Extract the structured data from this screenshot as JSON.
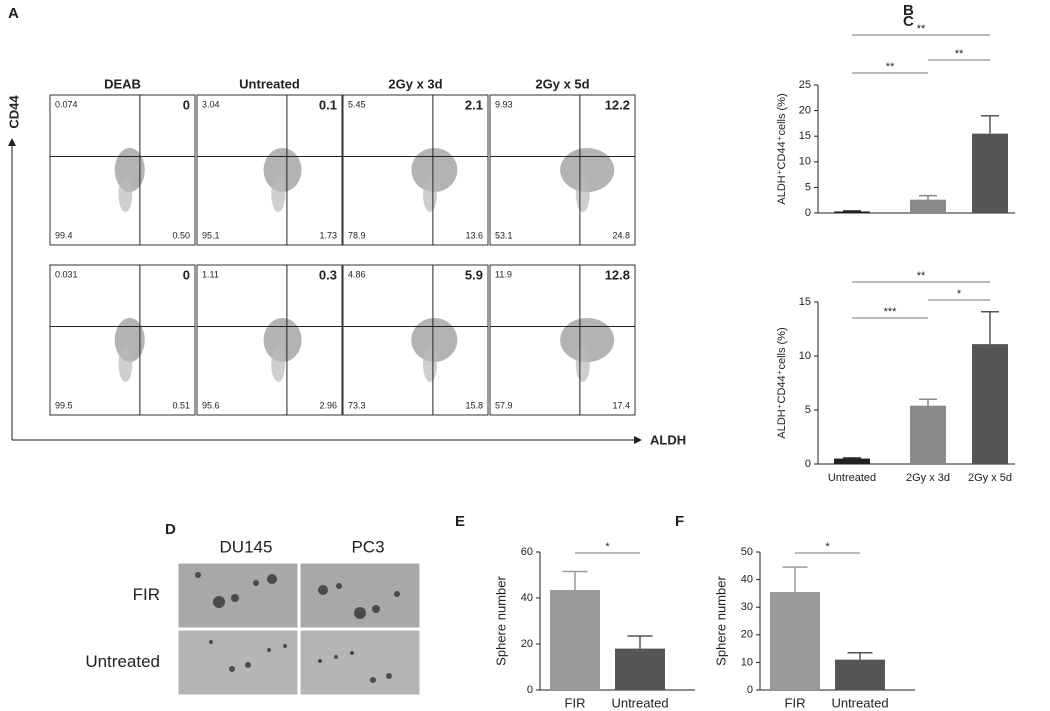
{
  "flow": {
    "panel": "A",
    "x_label": "ALDH",
    "y_label": "CD44",
    "columns": [
      "DEAB",
      "Untreated",
      "2Gy x 3d",
      "2Gy x 5d"
    ],
    "rows": [
      [
        {
          "ul": "0.074",
          "ur": "0",
          "ll": "99.4",
          "lr": "0.50"
        },
        {
          "ul": "3.04",
          "ur": "0.1",
          "ll": "95.1",
          "lr": "1.73"
        },
        {
          "ul": "5.45",
          "ur": "2.1",
          "ll": "78.9",
          "lr": "13.6"
        },
        {
          "ul": "9.93",
          "ur": "12.2",
          "ll": "53.1",
          "lr": "24.8"
        }
      ],
      [
        {
          "ul": "0.031",
          "ur": "0",
          "ll": "99.5",
          "lr": "0.51"
        },
        {
          "ul": "1.11",
          "ur": "0.3",
          "ll": "95.6",
          "lr": "2.96"
        },
        {
          "ul": "4.86",
          "ur": "5.9",
          "ll": "73.3",
          "lr": "15.8"
        },
        {
          "ul": "11.9",
          "ur": "12.8",
          "ll": "57.9",
          "lr": "17.4"
        }
      ]
    ]
  },
  "spheres": {
    "panel": "D",
    "columns": [
      "DU145",
      "PC3"
    ],
    "rows": [
      "FIR",
      "Untreated"
    ]
  },
  "chart_data": [
    {
      "type": "bar",
      "panel": "B",
      "y_label": "ALDH⁺CD44⁺cells (%)",
      "categories": [
        null,
        null,
        null
      ],
      "values": [
        0.3,
        2.6,
        15.5
      ],
      "errors": [
        0.1,
        0.8,
        3.5
      ],
      "colors": [
        "#222222",
        "#8a8a8a",
        "#555555"
      ],
      "ylim": [
        0,
        25
      ],
      "yticks": [
        0,
        5,
        10,
        15,
        20,
        25
      ],
      "annotations": [
        {
          "text": "**",
          "from": 0,
          "to": 1
        },
        {
          "text": "**",
          "from": 1,
          "to": 2
        },
        {
          "text": "**",
          "from": 0,
          "to": 2
        }
      ]
    },
    {
      "type": "bar",
      "panel": "C",
      "y_label": "ALDH⁺CD44⁺cells (%)",
      "categories": [
        "Untreated",
        "2Gy x 3d",
        "2Gy x 5d"
      ],
      "values": [
        0.5,
        5.4,
        11.1
      ],
      "errors": [
        0.05,
        0.6,
        3
      ],
      "colors": [
        "#222222",
        "#8a8a8a",
        "#555555"
      ],
      "ylim": [
        0,
        15
      ],
      "yticks": [
        0,
        5,
        10,
        15
      ],
      "annotations": [
        {
          "text": "***",
          "from": 0,
          "to": 1
        },
        {
          "text": "*",
          "from": 1,
          "to": 2
        },
        {
          "text": "**",
          "from": 0,
          "to": 2
        }
      ]
    },
    {
      "type": "bar",
      "panel": "E",
      "y_label": "Sphere number",
      "categories": [
        "FIR",
        "Untreated"
      ],
      "values": [
        43.5,
        18
      ],
      "errors": [
        8,
        5.5
      ],
      "colors": [
        "#9a9a9a",
        "#555555"
      ],
      "ylim": [
        0,
        60
      ],
      "yticks": [
        0,
        20,
        40,
        60
      ],
      "annotations": [
        {
          "text": "*",
          "from": 0,
          "to": 1
        }
      ]
    },
    {
      "type": "bar",
      "panel": "F",
      "y_label": "Sphere number",
      "categories": [
        "FIR",
        "Untreated"
      ],
      "values": [
        35.5,
        11
      ],
      "errors": [
        9,
        2.5
      ],
      "colors": [
        "#9a9a9a",
        "#555555"
      ],
      "ylim": [
        0,
        50
      ],
      "yticks": [
        0,
        10,
        20,
        30,
        40,
        50
      ],
      "annotations": [
        {
          "text": "*",
          "from": 0,
          "to": 1
        }
      ]
    }
  ]
}
